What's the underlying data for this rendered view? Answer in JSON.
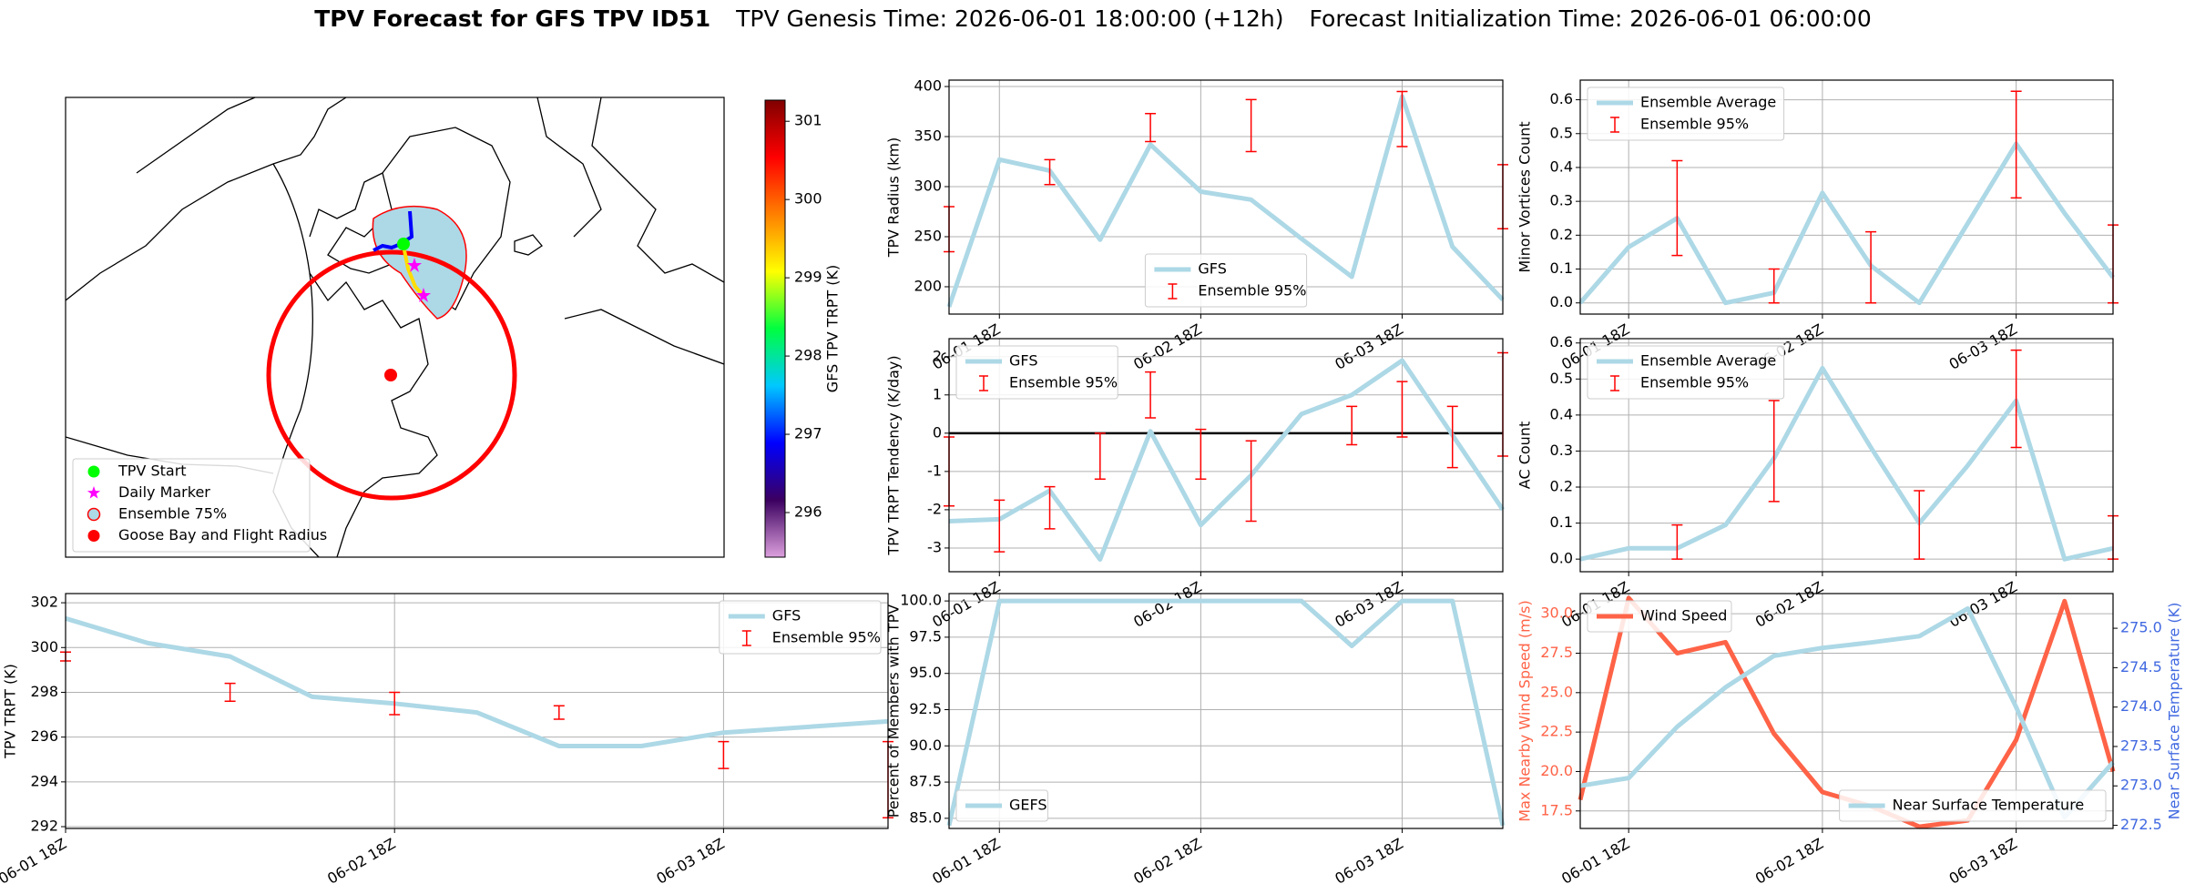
{
  "header": {
    "title": "TPV Forecast for GFS TPV ID51",
    "genesis": "TPV Genesis Time: 2026-06-01 18:00:00 (+12h)",
    "init": "Forecast Initialization Time: 2026-06-01 06:00:00"
  },
  "chart_data": [
    {
      "type": "map",
      "legend": [
        {
          "name": "TPV Start",
          "color": "#00ff00",
          "marker": "o"
        },
        {
          "name": "Daily Marker",
          "color": "#ff00ff",
          "marker": "*"
        },
        {
          "name": "Ensemble 75%",
          "color": "#add8e6",
          "edgecolor": "#ff0000",
          "marker": "o"
        },
        {
          "name": "Goose Bay and Flight Radius",
          "color": "#ff0000",
          "marker": "o"
        }
      ],
      "colorbar": {
        "label": "GFS TPV TRPT (K)",
        "clim": [
          295.43,
          301.27
        ],
        "ticks": [
          296,
          297,
          298,
          299,
          300,
          301
        ],
        "cmap": [
          "#dda0dd",
          "#3b0060",
          "#0000ff",
          "#00c8ff",
          "#00ff40",
          "#ffff00",
          "#ff8000",
          "#ff0000",
          "#800000"
        ]
      }
    },
    {
      "type": "line",
      "ylabel": "TPV TRPT (K)",
      "grid": true,
      "legend": "upper right",
      "x": [
        "06-01 18Z",
        "06-02 00Z",
        "06-02 06Z",
        "06-02 12Z",
        "06-02 18Z",
        "06-03 00Z",
        "06-03 06Z",
        "06-03 12Z",
        "06-03 18Z",
        "06-04 00Z",
        "06-04 06Z"
      ],
      "xticks": [
        "06-01 18Z",
        "06-02 18Z",
        "06-03 18Z"
      ],
      "ylim": [
        291.92,
        302.41
      ],
      "yticks": [
        292,
        294,
        296,
        298,
        300,
        302
      ],
      "series": [
        {
          "name": "GFS",
          "color": "#add8e6",
          "values": [
            301.3,
            300.2,
            299.6,
            297.8,
            297.5,
            297.1,
            295.6,
            295.6,
            296.2,
            296.45,
            296.7
          ]
        },
        {
          "name": "Ensemble 95%",
          "type": "errorbar",
          "color": "#ff0000",
          "x": [
            "06-01 18Z",
            "06-02 06Z",
            "06-02 18Z",
            "06-03 06Z",
            "06-03 18Z",
            "06-04 06Z"
          ],
          "low": [
            299.4,
            297.6,
            297.0,
            296.8,
            294.6,
            292.4
          ],
          "high": [
            299.8,
            298.4,
            298.0,
            297.4,
            295.8,
            295.8
          ]
        }
      ]
    },
    {
      "type": "line",
      "ylabel": "TPV Radius (km)",
      "grid": true,
      "legend": "lower center",
      "x": [
        "06-01 12Z",
        "06-01 18Z",
        "06-02 00Z",
        "06-02 06Z",
        "06-02 12Z",
        "06-02 18Z",
        "06-03 00Z",
        "06-03 06Z",
        "06-03 12Z",
        "06-03 18Z",
        "06-04 00Z",
        "06-04 06Z"
      ],
      "xticks": [
        "06-01 18Z",
        "06-02 18Z",
        "06-03 18Z"
      ],
      "ylim": [
        172.7,
        406.4
      ],
      "yticks": [
        200,
        250,
        300,
        350,
        400
      ],
      "series": [
        {
          "name": "GFS",
          "color": "#add8e6",
          "values": [
            180,
            327,
            316,
            247,
            342,
            295,
            287,
            248,
            210,
            390,
            240,
            187
          ]
        },
        {
          "name": "Ensemble 95%",
          "type": "errorbar",
          "color": "#ff0000",
          "x": [
            "06-01 12Z",
            "06-02 00Z",
            "06-02 12Z",
            "06-03 00Z",
            "06-03 18Z",
            "06-04 06Z"
          ],
          "low": [
            235,
            302,
            345,
            335,
            340,
            258
          ],
          "high": [
            280,
            327,
            373,
            387,
            395,
            322
          ]
        }
      ]
    },
    {
      "type": "line",
      "ylabel": "TPV TRPT Tendency (K/day)",
      "grid": true,
      "legend": "upper left",
      "hline": 0,
      "x": [
        "06-01 12Z",
        "06-01 18Z",
        "06-02 00Z",
        "06-02 06Z",
        "06-02 12Z",
        "06-02 18Z",
        "06-03 00Z",
        "06-03 06Z",
        "06-03 12Z",
        "06-03 18Z",
        "06-04 00Z",
        "06-04 06Z"
      ],
      "xticks": [
        "06-01 18Z",
        "06-02 18Z",
        "06-03 18Z"
      ],
      "ylim": [
        -3.62,
        2.47
      ],
      "yticks": [
        -3,
        -2,
        -1,
        0,
        1,
        2
      ],
      "series": [
        {
          "name": "GFS",
          "color": "#add8e6",
          "values": [
            -2.3,
            -2.25,
            -1.5,
            -3.3,
            0.05,
            -2.4,
            -1.1,
            0.5,
            1.0,
            1.9,
            -0.05,
            -2.0
          ]
        },
        {
          "name": "Ensemble 95%",
          "type": "errorbar",
          "color": "#ff0000",
          "x": [
            "06-01 12Z",
            "06-01 18Z",
            "06-02 00Z",
            "06-02 06Z",
            "06-02 12Z",
            "06-02 18Z",
            "06-03 00Z",
            "06-03 12Z",
            "06-03 18Z",
            "06-04 00Z",
            "06-04 06Z"
          ],
          "low": [
            -1.9,
            -3.1,
            -2.5,
            -1.2,
            0.4,
            -1.2,
            -2.3,
            -0.3,
            -0.1,
            -0.9,
            -0.6
          ],
          "high": [
            -0.1,
            -1.75,
            -1.4,
            0,
            1.6,
            0.1,
            -0.2,
            0.7,
            1.35,
            0.7,
            2.1
          ]
        }
      ]
    },
    {
      "type": "line",
      "ylabel": "Minor Vortices Count",
      "grid": true,
      "legend": "upper left",
      "x": [
        "06-01 12Z",
        "06-01 18Z",
        "06-02 00Z",
        "06-02 06Z",
        "06-02 12Z",
        "06-02 18Z",
        "06-03 00Z",
        "06-03 06Z",
        "06-03 12Z",
        "06-03 18Z",
        "06-04 00Z",
        "06-04 06Z"
      ],
      "xticks": [
        "06-01 18Z",
        "06-02 18Z",
        "06-03 18Z"
      ],
      "ylim": [
        -0.033,
        0.658
      ],
      "yticks": [
        {
          "value": 0,
          "label": "0.0"
        },
        0.1,
        0.2,
        0.3,
        0.4,
        0.5,
        0.6
      ],
      "series": [
        {
          "name": "Ensemble Average",
          "color": "#add8e6",
          "values": [
            0,
            0.165,
            0.25,
            0,
            0.03,
            0.325,
            0.11,
            0,
            0.235,
            0.47,
            0.265,
            0.075
          ]
        },
        {
          "name": "Ensemble 95%",
          "type": "errorbar",
          "color": "#ff0000",
          "x": [
            "06-02 00Z",
            "06-02 12Z",
            "06-03 00Z",
            "06-03 18Z",
            "06-04 06Z"
          ],
          "low": [
            0.14,
            0,
            0,
            0.31,
            0
          ],
          "high": [
            0.42,
            0.1,
            0.21,
            0.625,
            0.23
          ]
        }
      ]
    },
    {
      "type": "line",
      "ylabel": "Percent of Members with TPV",
      "grid": true,
      "legend": "lower left",
      "x": [
        "06-01 12Z",
        "06-01 18Z",
        "06-02 00Z",
        "06-02 06Z",
        "06-02 12Z",
        "06-02 18Z",
        "06-03 00Z",
        "06-03 06Z",
        "06-03 12Z",
        "06-03 18Z",
        "06-04 00Z",
        "06-04 06Z"
      ],
      "xticks": [
        "06-01 18Z",
        "06-02 18Z",
        "06-03 18Z"
      ],
      "ylim": [
        84.3,
        100.51
      ],
      "yticks": [
        {
          "value": 85,
          "label": "85.0"
        },
        87.5,
        {
          "value": 90,
          "label": "90.0"
        },
        92.5,
        {
          "value": 95,
          "label": "95.0"
        },
        97.5,
        {
          "value": 100,
          "label": "100.0"
        }
      ],
      "series": [
        {
          "name": "GEFS",
          "color": "#add8e6",
          "values": [
            84.5,
            100,
            100,
            100,
            100,
            100,
            100,
            100,
            96.9,
            100,
            100,
            84.5
          ]
        }
      ]
    },
    {
      "type": "line",
      "ylabel": "AC Count",
      "grid": true,
      "legend": "upper left",
      "x": [
        "06-01 12Z",
        "06-01 18Z",
        "06-02 00Z",
        "06-02 06Z",
        "06-02 12Z",
        "06-02 18Z",
        "06-03 00Z",
        "06-03 06Z",
        "06-03 12Z",
        "06-03 18Z",
        "06-04 00Z",
        "06-04 06Z"
      ],
      "xticks": [
        "06-01 18Z",
        "06-02 18Z",
        "06-03 18Z"
      ],
      "ylim": [
        -0.035,
        0.612
      ],
      "yticks": [
        {
          "value": 0,
          "label": "0.0"
        },
        0.1,
        0.2,
        0.3,
        0.4,
        0.5,
        0.6
      ],
      "series": [
        {
          "name": "Ensemble Average",
          "color": "#add8e6",
          "values": [
            0,
            0.03,
            0.03,
            0.095,
            0.28,
            0.53,
            0.31,
            0.1,
            0.26,
            0.44,
            0,
            0.03
          ]
        },
        {
          "name": "Ensemble 95%",
          "type": "errorbar",
          "color": "#ff0000",
          "x": [
            "06-02 00Z",
            "06-02 12Z",
            "06-03 06Z",
            "06-03 18Z",
            "06-04 06Z"
          ],
          "low": [
            0,
            0.16,
            0,
            0.31,
            0
          ],
          "high": [
            0.095,
            0.44,
            0.19,
            0.58,
            0.12
          ]
        }
      ]
    },
    {
      "type": "line",
      "ylabel": "Max Nearby Wind Speed (m/s)",
      "y2label": "Near Surface Temperature (K)",
      "ycolor": "#ff6347",
      "y2color": "#4169e1",
      "grid": true,
      "legend": "upper left",
      "legend2": "lower right",
      "x": [
        "06-01 12Z",
        "06-01 18Z",
        "06-02 00Z",
        "06-02 06Z",
        "06-02 12Z",
        "06-02 18Z",
        "06-03 00Z",
        "06-03 06Z",
        "06-03 12Z",
        "06-03 18Z",
        "06-04 00Z",
        "06-04 06Z"
      ],
      "xticks": [
        "06-01 18Z",
        "06-02 18Z",
        "06-03 18Z"
      ],
      "ylim": [
        16.39,
        31.28
      ],
      "yticks": [
        17.5,
        {
          "value": 20,
          "label": "20.0"
        },
        22.5,
        {
          "value": 25,
          "label": "25.0"
        },
        27.5,
        {
          "value": 30,
          "label": "30.0"
        }
      ],
      "y2lim": [
        272.46,
        275.44
      ],
      "y2ticks": [
        272.5,
        {
          "value": 273,
          "label": "273.0"
        },
        273.5,
        {
          "value": 274,
          "label": "274.0"
        },
        274.5,
        {
          "value": 275,
          "label": "275.0"
        }
      ],
      "series": [
        {
          "name": "Wind Speed",
          "color": "#ff6347",
          "values": [
            18.2,
            31.0,
            27.5,
            28.2,
            22.4,
            18.7,
            17.8,
            16.5,
            16.9,
            22.0,
            30.8,
            20.0
          ]
        },
        {
          "name": "Near Surface Temperature",
          "color": "#add8e6",
          "axis": "y2",
          "values": [
            273.0,
            273.1,
            273.75,
            274.25,
            274.65,
            274.75,
            274.82,
            274.9,
            275.25,
            274.0,
            272.6,
            273.3
          ]
        }
      ]
    }
  ]
}
